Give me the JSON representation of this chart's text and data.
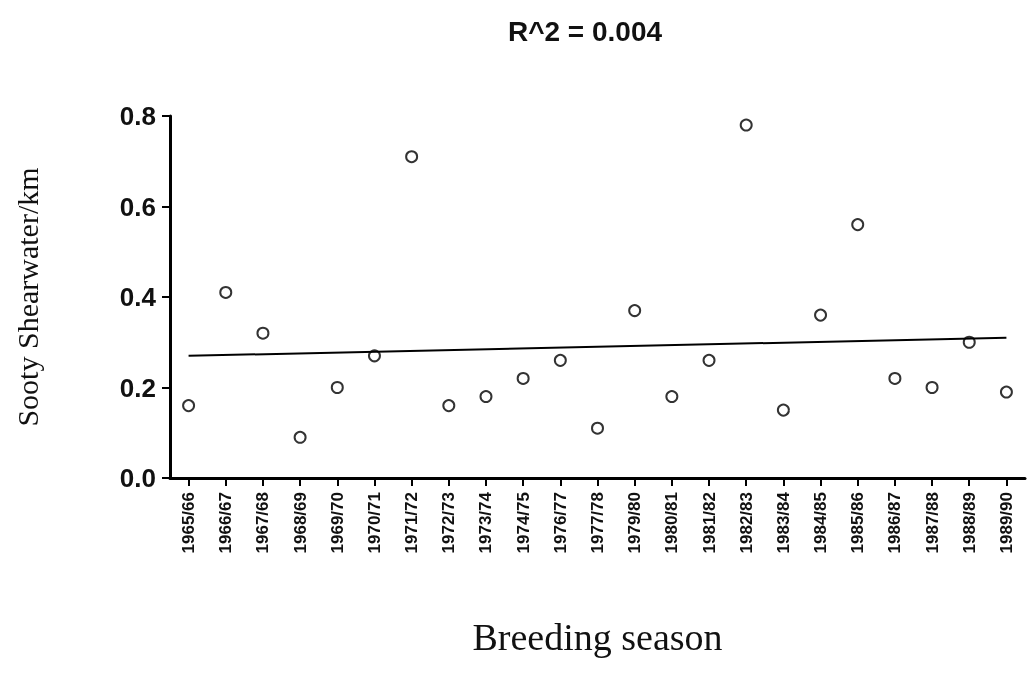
{
  "chart_data": {
    "type": "scatter",
    "title": "R^2 = 0.004",
    "xlabel": "Breeding season",
    "ylabel": "Sooty Shearwater/km",
    "categories": [
      "1965/66",
      "1966/67",
      "1967/68",
      "1968/69",
      "1969/70",
      "1970/71",
      "1971/72",
      "1972/73",
      "1973/74",
      "1974/75",
      "1976/77",
      "1977/78",
      "1979/80",
      "1980/81",
      "1981/82",
      "1982/83",
      "1983/84",
      "1984/85",
      "1985/86",
      "1986/87",
      "1987/88",
      "1988/89",
      "1989/90"
    ],
    "series": [
      {
        "color": "#000000",
        "marker": "circle",
        "values": [
          0.16,
          0.41,
          0.32,
          0.09,
          0.2,
          0.27,
          0.71,
          0.16,
          0.18,
          0.22,
          0.26,
          0.11,
          0.37,
          0.18,
          0.26,
          0.78,
          0.15,
          0.36,
          0.56,
          0.22,
          0.2,
          0.3,
          0.19
        ]
      },
      {
        "type": "line",
        "color": "#000000",
        "marker": "none",
        "x": [
          "1965/66",
          "1989/90"
        ],
        "values": [
          0.27,
          0.31
        ]
      }
    ],
    "ylim": [
      0,
      0.8
    ],
    "yticks": [
      {
        "value": 0,
        "label": "0.0"
      },
      {
        "value": 0.2,
        "label": "0.2"
      },
      {
        "value": 0.4,
        "label": "0.4"
      },
      {
        "value": 0.6,
        "label": "0.6"
      },
      {
        "value": 0.8,
        "label": "0.8"
      }
    ],
    "grid": false
  }
}
